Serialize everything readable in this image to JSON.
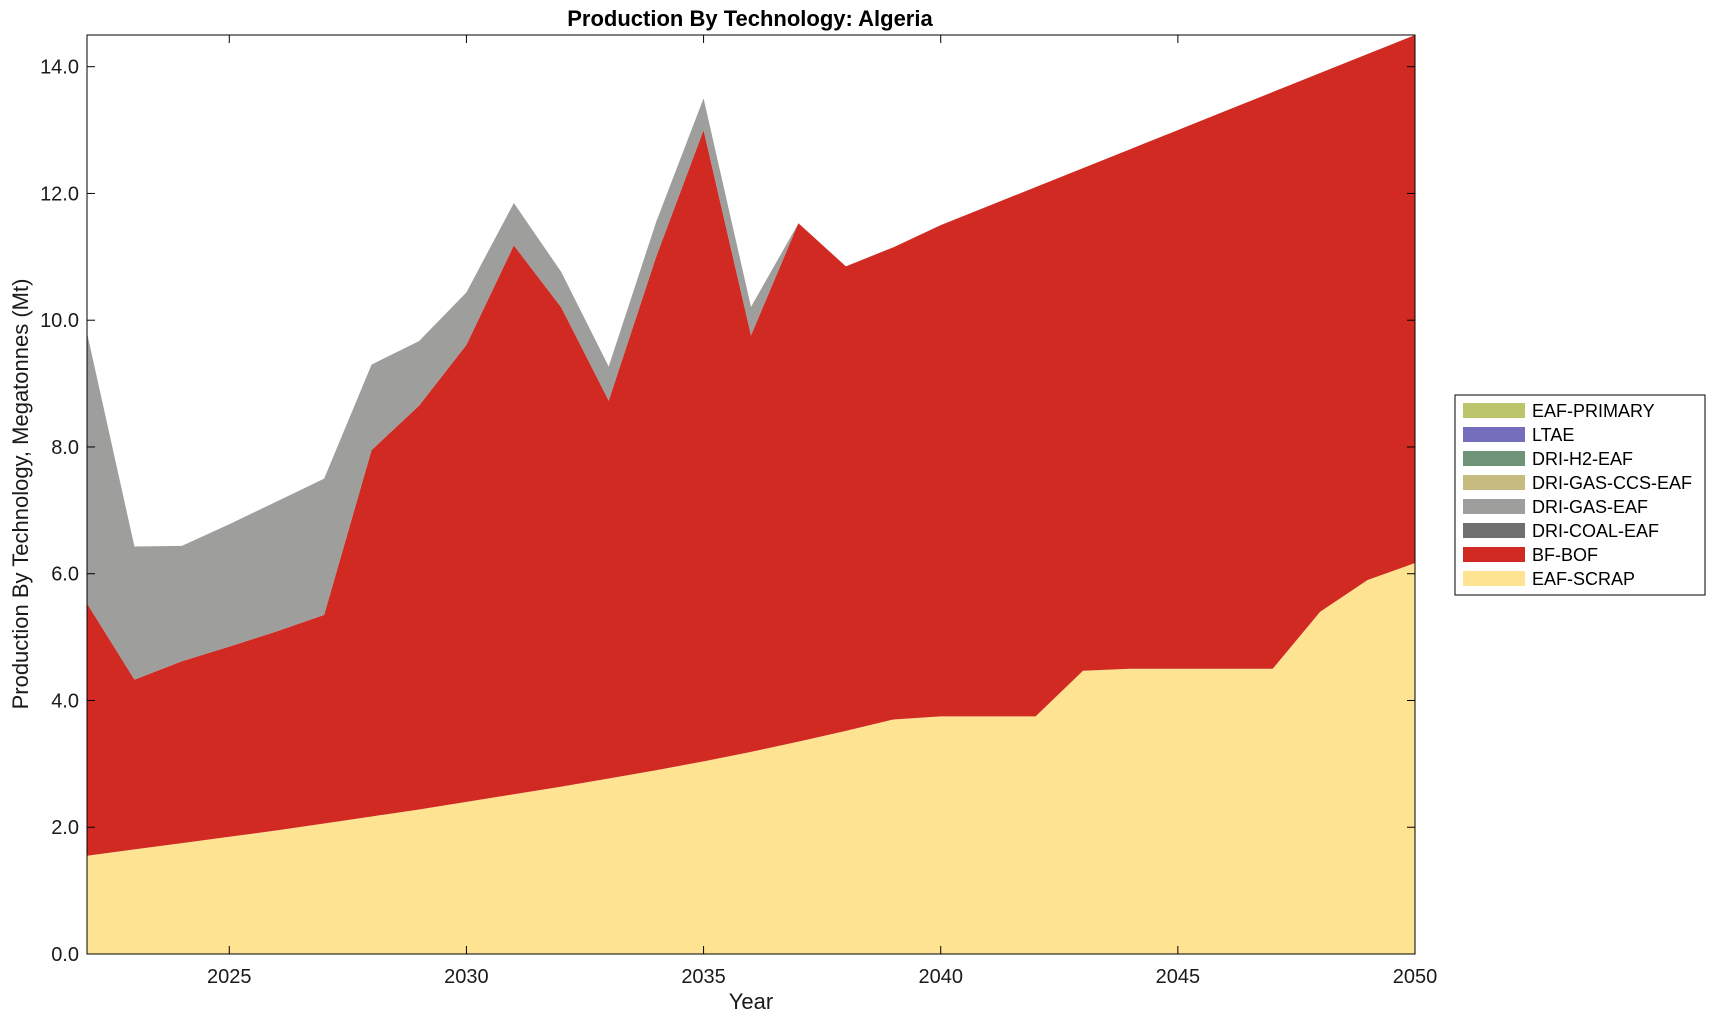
{
  "chart_data": {
    "type": "area",
    "stacked": true,
    "title": "Production By Technology: Algeria",
    "xlabel": "Year",
    "ylabel": "Production By Technology, Megatonnes (Mt)",
    "xlim": [
      2022,
      2050
    ],
    "ylim": [
      0,
      14.5
    ],
    "xticks": [
      2025,
      2030,
      2035,
      2040,
      2045,
      2050
    ],
    "yticks": [
      0,
      2,
      4,
      6,
      8,
      10,
      12,
      14
    ],
    "ytick_labels": [
      "0.0",
      "2.0",
      "4.0",
      "6.0",
      "8.0",
      "10.0",
      "12.0",
      "14.0"
    ],
    "legend_position": "right",
    "x": [
      2022,
      2023,
      2024,
      2025,
      2026,
      2027,
      2028,
      2029,
      2030,
      2031,
      2032,
      2033,
      2034,
      2035,
      2036,
      2037,
      2038,
      2039,
      2040,
      2041,
      2042,
      2043,
      2044,
      2045,
      2046,
      2047,
      2048,
      2049,
      2050
    ],
    "series": [
      {
        "name": "EAF-SCRAP",
        "color": "#fde392",
        "values": [
          1.55,
          1.65,
          1.75,
          1.85,
          1.95,
          2.06,
          2.17,
          2.28,
          2.4,
          2.52,
          2.64,
          2.77,
          2.9,
          3.04,
          3.19,
          3.35,
          3.52,
          3.7,
          3.75,
          3.75,
          3.75,
          4.47,
          4.5,
          4.5,
          4.5,
          4.5,
          5.4,
          5.9,
          6.17
        ]
      },
      {
        "name": "BF-BOF",
        "color": "#d12a23",
        "values": [
          3.98,
          2.68,
          2.87,
          3.0,
          3.14,
          3.29,
          5.78,
          6.37,
          7.21,
          8.66,
          7.56,
          5.96,
          8.1,
          9.96,
          6.57,
          8.18,
          7.33,
          7.45,
          7.75,
          8.05,
          8.35,
          7.93,
          8.2,
          8.5,
          8.8,
          9.1,
          8.5,
          8.3,
          8.33
        ]
      },
      {
        "name": "DRI-COAL-EAF",
        "color": "#6f6f6f",
        "values": [
          0,
          0,
          0,
          0,
          0,
          0,
          0,
          0,
          0,
          0,
          0,
          0,
          0,
          0,
          0,
          0,
          0,
          0,
          0,
          0,
          0,
          0,
          0,
          0,
          0,
          0,
          0,
          0,
          0
        ]
      },
      {
        "name": "DRI-GAS-EAF",
        "color": "#9e9e9c",
        "values": [
          4.27,
          2.1,
          1.82,
          1.93,
          2.05,
          2.15,
          1.35,
          1.02,
          0.83,
          0.67,
          0.56,
          0.54,
          0.55,
          0.5,
          0.45,
          0.0,
          0.0,
          0.0,
          0.0,
          0.0,
          0.0,
          0.0,
          0.0,
          0.0,
          0.0,
          0.0,
          0.0,
          0.0,
          0.0
        ]
      },
      {
        "name": "DRI-GAS-CCS-EAF",
        "color": "#c6bc7f",
        "values": [
          0,
          0,
          0,
          0,
          0,
          0,
          0,
          0,
          0,
          0,
          0,
          0,
          0,
          0,
          0,
          0,
          0,
          0,
          0,
          0,
          0,
          0,
          0,
          0,
          0,
          0,
          0,
          0,
          0
        ]
      },
      {
        "name": "DRI-H2-EAF",
        "color": "#6e9377",
        "values": [
          0,
          0,
          0,
          0,
          0,
          0,
          0,
          0,
          0,
          0,
          0,
          0,
          0,
          0,
          0,
          0,
          0,
          0,
          0,
          0,
          0,
          0,
          0,
          0,
          0,
          0,
          0,
          0,
          0
        ]
      },
      {
        "name": "LTAE",
        "color": "#746ebc",
        "values": [
          0,
          0,
          0,
          0,
          0,
          0,
          0,
          0,
          0,
          0,
          0,
          0,
          0,
          0,
          0,
          0,
          0,
          0,
          0,
          0,
          0,
          0,
          0,
          0,
          0,
          0,
          0,
          0,
          0
        ]
      },
      {
        "name": "EAF-PRIMARY",
        "color": "#bcc56a",
        "values": [
          0,
          0,
          0,
          0,
          0,
          0,
          0,
          0,
          0,
          0,
          0,
          0,
          0,
          0,
          0,
          0,
          0,
          0,
          0,
          0,
          0,
          0,
          0,
          0,
          0,
          0,
          0,
          0,
          0
        ]
      }
    ],
    "legend_order": [
      "EAF-PRIMARY",
      "LTAE",
      "DRI-H2-EAF",
      "DRI-GAS-CCS-EAF",
      "DRI-GAS-EAF",
      "DRI-COAL-EAF",
      "BF-BOF",
      "EAF-SCRAP"
    ]
  }
}
